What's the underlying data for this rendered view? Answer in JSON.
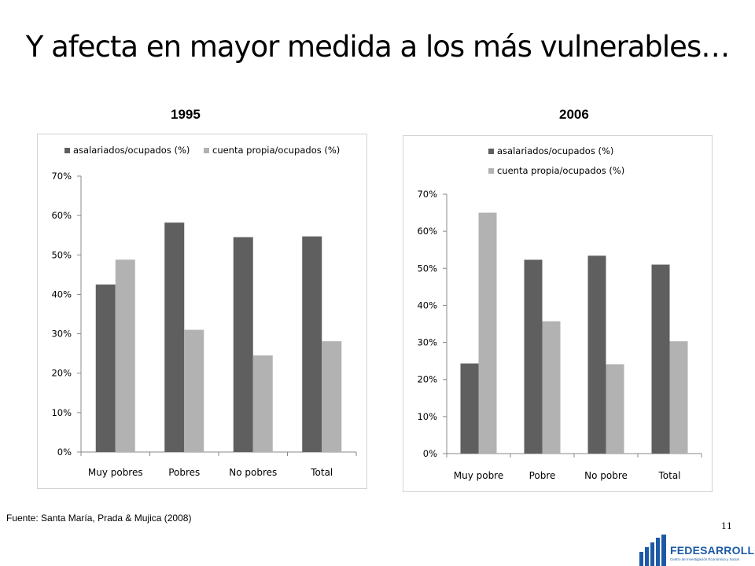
{
  "slide": {
    "title": "Y afecta en mayor medida a los más vulnerables…",
    "source": "Fuente: Santa María, Prada & Mujica (2008)",
    "page_number": "11",
    "logo_name": "FEDESARROLLO",
    "logo_subtitle": "Centro de Investigación Económica y Social"
  },
  "chart_data": [
    {
      "type": "bar",
      "title": "1995",
      "categories": [
        "Muy pobres",
        "Pobres",
        "No pobres",
        "Total"
      ],
      "series": [
        {
          "name": "asalariados/ocupados (%)",
          "values": [
            42.5,
            58.2,
            54.5,
            54.7
          ],
          "color": "#5f5f5f"
        },
        {
          "name": "cuenta propia/ocupados (%)",
          "values": [
            48.8,
            31.0,
            24.5,
            28.1
          ],
          "color": "#b2b2b2"
        }
      ],
      "ylim": [
        0,
        70
      ],
      "yticks": [
        0,
        10,
        20,
        30,
        40,
        50,
        60,
        70
      ],
      "ytick_labels": [
        "0%",
        "10%",
        "20%",
        "30%",
        "40%",
        "50%",
        "60%",
        "70%"
      ],
      "legend_position": "top",
      "grid": false
    },
    {
      "type": "bar",
      "title": "2006",
      "categories": [
        "Muy pobre",
        "Pobre",
        "No pobre",
        "Total"
      ],
      "series": [
        {
          "name": "asalariados/ocupados (%)",
          "values": [
            24.3,
            52.3,
            53.4,
            51.0
          ],
          "color": "#5f5f5f"
        },
        {
          "name": "cuenta propia/ocupados (%)",
          "values": [
            65.0,
            35.7,
            24.1,
            30.3
          ],
          "color": "#b2b2b2"
        }
      ],
      "ylim": [
        0,
        70
      ],
      "yticks": [
        0,
        10,
        20,
        30,
        40,
        50,
        60,
        70
      ],
      "ytick_labels": [
        "0%",
        "10%",
        "20%",
        "30%",
        "40%",
        "50%",
        "60%",
        "70%"
      ],
      "legend_position": "top",
      "grid": false
    }
  ]
}
